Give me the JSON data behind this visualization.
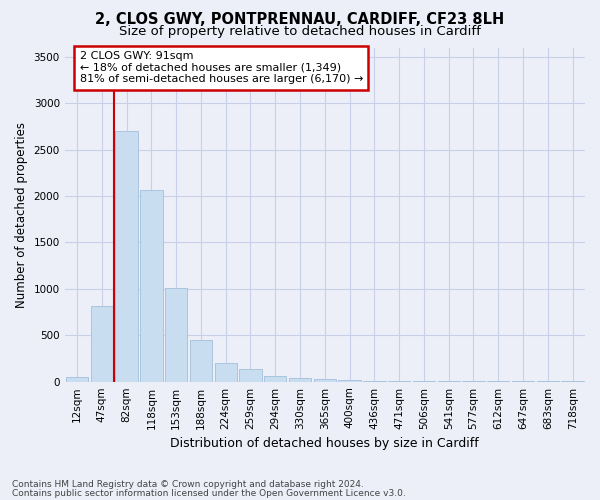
{
  "title": "2, CLOS GWY, PONTPRENNAU, CARDIFF, CF23 8LH",
  "subtitle": "Size of property relative to detached houses in Cardiff",
  "xlabel": "Distribution of detached houses by size in Cardiff",
  "ylabel": "Number of detached properties",
  "categories": [
    "12sqm",
    "47sqm",
    "82sqm",
    "118sqm",
    "153sqm",
    "188sqm",
    "224sqm",
    "259sqm",
    "294sqm",
    "330sqm",
    "365sqm",
    "400sqm",
    "436sqm",
    "471sqm",
    "506sqm",
    "541sqm",
    "577sqm",
    "612sqm",
    "647sqm",
    "683sqm",
    "718sqm"
  ],
  "values": [
    55,
    820,
    2700,
    2060,
    1010,
    450,
    200,
    135,
    65,
    45,
    28,
    18,
    12,
    9,
    7,
    5,
    4,
    4,
    3,
    3,
    2
  ],
  "bar_color": "#c9ddf0",
  "bar_edge_color": "#aac4de",
  "grid_color": "#c8cfe8",
  "background_color": "#eceef8",
  "red_line_x": 1.5,
  "annotation_text": "2 CLOS GWY: 91sqm\n← 18% of detached houses are smaller (1,349)\n81% of semi-detached houses are larger (6,170) →",
  "annotation_box_facecolor": "#ffffff",
  "annotation_border_color": "#cc0000",
  "ylim": [
    0,
    3600
  ],
  "yticks": [
    0,
    500,
    1000,
    1500,
    2000,
    2500,
    3000,
    3500
  ],
  "footer1": "Contains HM Land Registry data © Crown copyright and database right 2024.",
  "footer2": "Contains public sector information licensed under the Open Government Licence v3.0.",
  "title_fontsize": 10.5,
  "subtitle_fontsize": 9.5,
  "tick_fontsize": 7.5,
  "ylabel_fontsize": 8.5,
  "xlabel_fontsize": 9,
  "annotation_fontsize": 8,
  "footer_fontsize": 6.5
}
